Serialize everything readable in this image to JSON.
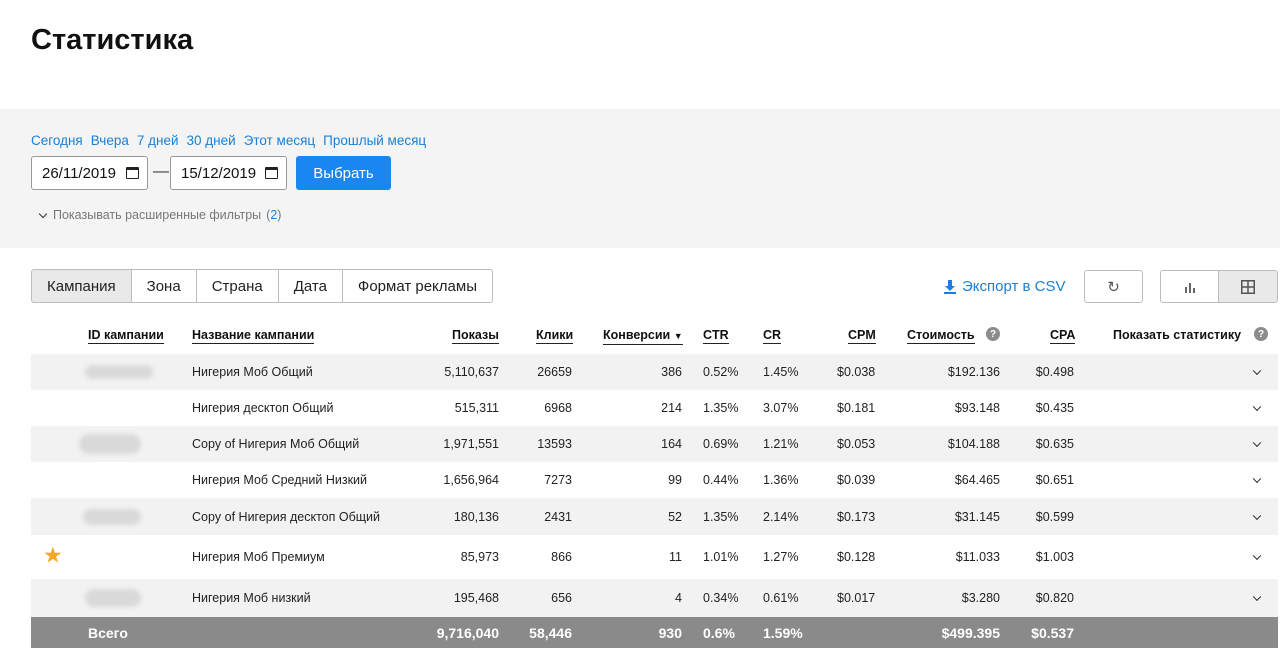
{
  "page": {
    "title": "Статистика"
  },
  "filters": {
    "quick_ranges": [
      "Сегодня",
      "Вчера",
      "7 дней",
      "30 дней",
      "Этот месяц",
      "Прошлый месяц"
    ],
    "date_from": "26/11/2019",
    "date_to": "15/12/2019",
    "dash": "—",
    "select_button": "Выбрать",
    "advanced_label": "Показывать расширенные фильтры",
    "advanced_count_open": "(",
    "advanced_count": "2",
    "advanced_count_close": ")"
  },
  "tabs": [
    "Кампания",
    "Зона",
    "Страна",
    "Дата",
    "Формат рекламы"
  ],
  "toolbar": {
    "export_label": "Экспорт в CSV",
    "refresh_icon": "↻"
  },
  "table": {
    "headers": {
      "id": "ID кампании",
      "name": "Название кампании",
      "impressions": "Показы",
      "clicks": "Клики",
      "conversions": "Конверсии",
      "ctr": "CTR",
      "cr": "CR",
      "cpm": "CPM",
      "cost": "Стоимость",
      "cpa": "CPA",
      "show_stats": "Показать статистику"
    },
    "rows": [
      {
        "name": "Нигерия Моб Общий",
        "impressions": "5,110,637",
        "clicks": "26659",
        "conversions": "386",
        "ctr": "0.52%",
        "cr": "1.45%",
        "cpm": "$0.038",
        "cost": "$192.136",
        "cpa": "$0.498"
      },
      {
        "name": "Нигерия десктоп Общий",
        "impressions": "515,311",
        "clicks": "6968",
        "conversions": "214",
        "ctr": "1.35%",
        "cr": "3.07%",
        "cpm": "$0.181",
        "cost": "$93.148",
        "cpa": "$0.435"
      },
      {
        "name": "Copy of Нигерия Моб Общий",
        "impressions": "1,971,551",
        "clicks": "13593",
        "conversions": "164",
        "ctr": "0.69%",
        "cr": "1.21%",
        "cpm": "$0.053",
        "cost": "$104.188",
        "cpa": "$0.635"
      },
      {
        "name": "Нигерия Моб Средний Низкий",
        "impressions": "1,656,964",
        "clicks": "7273",
        "conversions": "99",
        "ctr": "0.44%",
        "cr": "1.36%",
        "cpm": "$0.039",
        "cost": "$64.465",
        "cpa": "$0.651"
      },
      {
        "name": "Copy of Нигерия десктоп Общий",
        "impressions": "180,136",
        "clicks": "2431",
        "conversions": "52",
        "ctr": "1.35%",
        "cr": "2.14%",
        "cpm": "$0.173",
        "cost": "$31.145",
        "cpa": "$0.599"
      },
      {
        "name": "Нигерия Моб Премиум",
        "impressions": "85,973",
        "clicks": "866",
        "conversions": "11",
        "ctr": "1.01%",
        "cr": "1.27%",
        "cpm": "$0.128",
        "cost": "$11.033",
        "cpa": "$1.003"
      },
      {
        "name": "Нигерия Моб низкий",
        "impressions": "195,468",
        "clicks": "656",
        "conversions": "4",
        "ctr": "0.34%",
        "cr": "0.61%",
        "cpm": "$0.017",
        "cost": "$3.280",
        "cpa": "$0.820"
      }
    ],
    "total": {
      "label": "Всего",
      "impressions": "9,716,040",
      "clicks": "58,446",
      "conversions": "930",
      "ctr": "0.6%",
      "cr": "1.59%",
      "cost": "$499.395",
      "cpa": "$0.537"
    }
  },
  "colors": {
    "accent": "#1a86f0",
    "link": "#1a7fd6",
    "star": "#f5a623",
    "total_bg": "#8a8a8a"
  }
}
